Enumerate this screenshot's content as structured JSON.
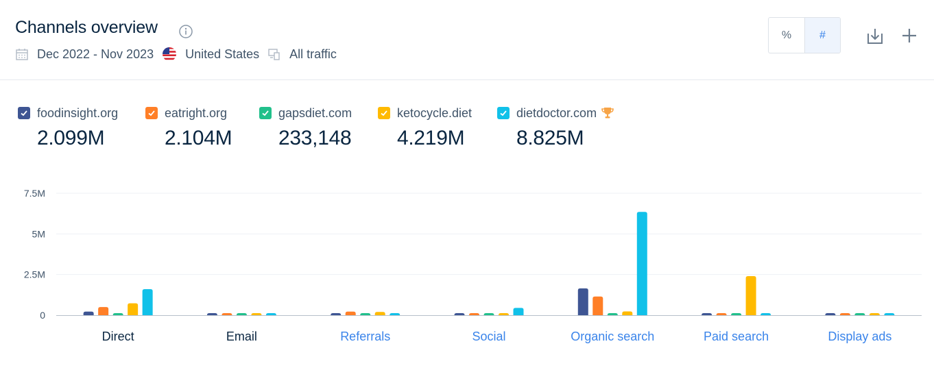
{
  "header": {
    "title": "Channels overview",
    "date_range": "Dec 2022 - Nov 2023",
    "country": "United States",
    "traffic": "All traffic",
    "toggle": {
      "percent_label": "%",
      "number_label": "#",
      "active": "#"
    },
    "icons": [
      "calendar-icon",
      "us-flag-icon",
      "devices-icon",
      "info-icon",
      "download-icon",
      "plus-icon"
    ]
  },
  "legend": [
    {
      "site": "foodinsight.org",
      "total": "2.099M",
      "color": "#3e5593"
    },
    {
      "site": "eatright.org",
      "total": "2.104M",
      "color": "#ff7f27"
    },
    {
      "site": "gapsdiet.com",
      "total": "233,148",
      "color": "#21c08b"
    },
    {
      "site": "ketocycle.diet",
      "total": "4.219M",
      "color": "#ffba00"
    },
    {
      "site": "dietdoctor.com",
      "total": "8.825M",
      "color": "#11c1e9",
      "trophy": true
    }
  ],
  "chart_data": {
    "type": "bar",
    "categories": [
      "Direct",
      "Email",
      "Referrals",
      "Social",
      "Organic search",
      "Paid search",
      "Display ads"
    ],
    "category_link_colors": [
      "#092540",
      "#092540",
      "#3a84ea",
      "#3a84ea",
      "#3a84ea",
      "#3a84ea",
      "#3a84ea"
    ],
    "series": [
      {
        "name": "foodinsight.org",
        "color": "#3e5593",
        "values": [
          220000,
          5000,
          15000,
          8000,
          1650000,
          3000,
          2000
        ]
      },
      {
        "name": "eatright.org",
        "color": "#ff7f27",
        "values": [
          500000,
          8000,
          220000,
          30000,
          1150000,
          12000,
          3000
        ]
      },
      {
        "name": "gapsdiet.com",
        "color": "#21c08b",
        "values": [
          25000,
          1000,
          15000,
          5000,
          90000,
          1000,
          500
        ]
      },
      {
        "name": "ketocycle.diet",
        "color": "#ffba00",
        "values": [
          730000,
          3000,
          200000,
          70000,
          230000,
          2400000,
          2000
        ]
      },
      {
        "name": "dietdoctor.com",
        "color": "#11c1e9",
        "values": [
          1600000,
          40000,
          45000,
          450000,
          6350000,
          10000,
          4000
        ]
      }
    ],
    "ylim": [
      0,
      7500000
    ],
    "yticks": [
      "0",
      "2.5M",
      "5M",
      "7.5M"
    ],
    "ytick_values": [
      0,
      2500000,
      5000000,
      7500000
    ],
    "grid": true
  }
}
